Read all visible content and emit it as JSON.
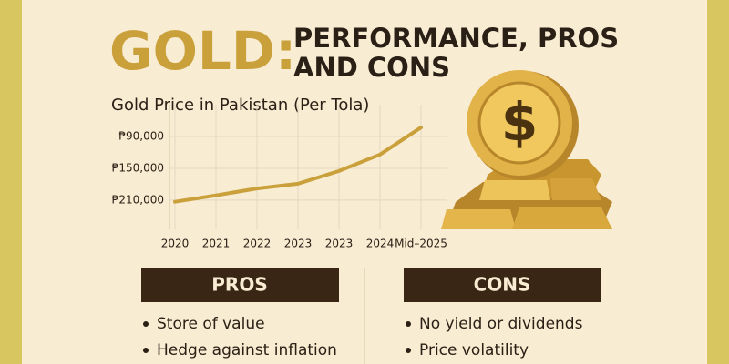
{
  "header": {
    "title_highlight": "GOLD:",
    "title_line1": "PERFORMANCE, PROS",
    "title_line2": "AND CONS"
  },
  "chart_data": {
    "type": "line",
    "title": "Gold Price in Pakistan (Per Tola)",
    "categories": [
      "2020",
      "2021",
      "2022",
      "2023",
      "2023",
      "2024",
      "Mid–2025"
    ],
    "values": [
      213000,
      201000,
      188000,
      179000,
      155000,
      124000,
      73000
    ],
    "color": "#c9a03a",
    "ylim": [
      265000,
      30000
    ],
    "yticks": [
      {
        "value": 90000,
        "label": "₱90,000"
      },
      {
        "value": 150000,
        "label": "₱150,000"
      },
      {
        "value": 210000,
        "label": "₱210,000"
      }
    ],
    "grid": true
  },
  "pros": {
    "heading": "PROS",
    "items": [
      "Store of value",
      "Hedge against inflation"
    ]
  },
  "cons": {
    "heading": "CONS",
    "items": [
      "No yield or dividends",
      "Price volatility"
    ]
  }
}
